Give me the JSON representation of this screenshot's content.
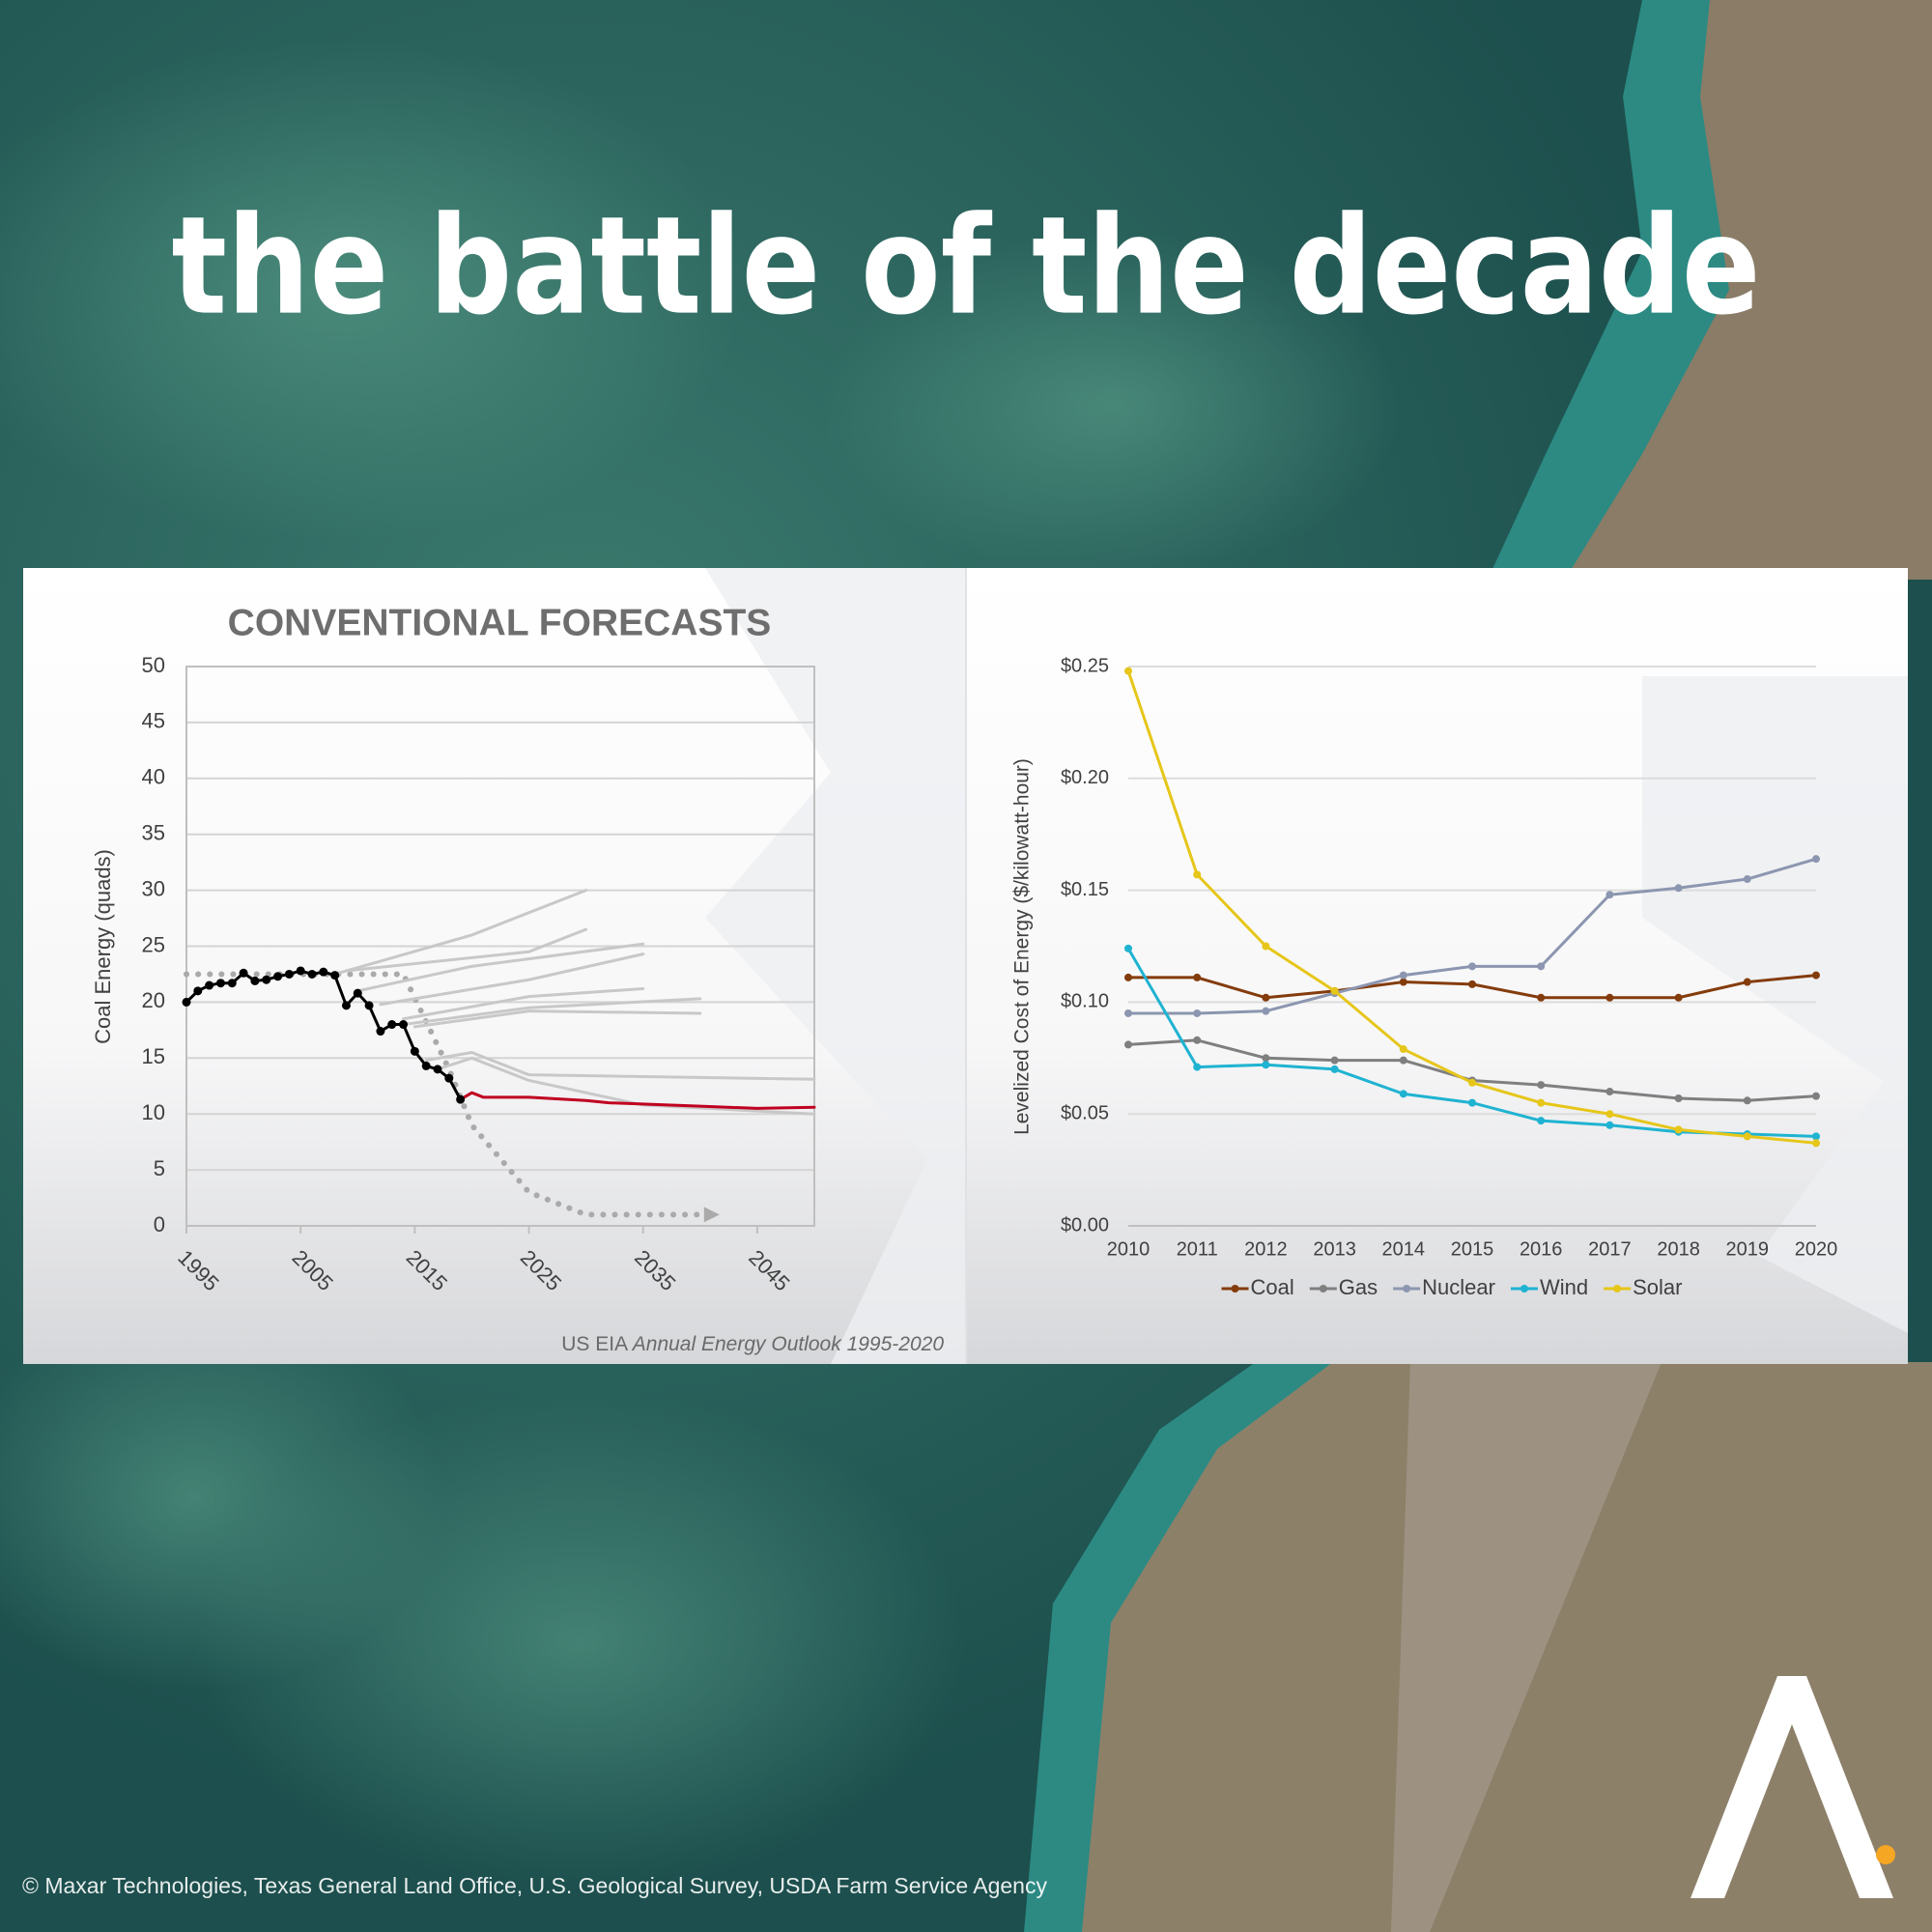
{
  "title": "the battle of the decade",
  "credit": "© Maxar Technologies, Texas General Land Office, U.S. Geological Survey, USDA Farm Service Agency",
  "chart_data": [
    {
      "type": "line",
      "title": "CONVENTIONAL FORECASTS",
      "y_label": "Coal Energy (quads)",
      "source": "US EIA",
      "source_title": "Annual Energy Outlook 1995-2020",
      "xlim": [
        1995,
        2050
      ],
      "xticks": [
        1995,
        2005,
        2015,
        2025,
        2035,
        2045
      ],
      "ylim": [
        0,
        50
      ],
      "yticks": [
        0,
        5,
        10,
        15,
        20,
        25,
        30,
        35,
        40,
        45,
        50
      ],
      "grid": true,
      "series": [
        {
          "color": "#aaaaaa",
          "dash": "dotted",
          "arrow": true,
          "x": [
            1995,
            2014,
            2018,
            2020,
            2025,
            2030,
            2040
          ],
          "values": [
            22.5,
            22.5,
            14,
            9,
            3,
            1,
            1
          ]
        },
        {
          "color": "#c8c8c8",
          "x": [
            2008,
            2020,
            2030
          ],
          "values": [
            22.5,
            26,
            30
          ]
        },
        {
          "color": "#c8c8c8",
          "x": [
            2009,
            2025,
            2030
          ],
          "values": [
            22.8,
            24.5,
            26.5
          ]
        },
        {
          "color": "#c8c8c8",
          "x": [
            2010,
            2020,
            2035
          ],
          "values": [
            21,
            23.2,
            25.2
          ]
        },
        {
          "color": "#c8c8c8",
          "x": [
            2012,
            2025,
            2035
          ],
          "values": [
            19.8,
            22,
            24.3
          ]
        },
        {
          "color": "#c8c8c8",
          "x": [
            2014,
            2025,
            2035
          ],
          "values": [
            18.5,
            20.5,
            21.2
          ]
        },
        {
          "color": "#c8c8c8",
          "x": [
            2014,
            2025,
            2040
          ],
          "values": [
            18,
            19.5,
            20.3
          ]
        },
        {
          "color": "#c8c8c8",
          "x": [
            2015,
            2025,
            2040
          ],
          "values": [
            17.8,
            19.2,
            19
          ]
        },
        {
          "color": "#c8c8c8",
          "x": [
            2016,
            2020,
            2025,
            2050
          ],
          "values": [
            14.8,
            15.5,
            13.5,
            13.1
          ]
        },
        {
          "color": "#c8c8c8",
          "x": [
            2017,
            2020,
            2025,
            2035,
            2050
          ],
          "values": [
            14,
            15,
            13,
            10.8,
            10
          ]
        },
        {
          "color": "#c00020",
          "x": [
            2019,
            2020,
            2021,
            2025,
            2030,
            2032,
            2040,
            2045,
            2050
          ],
          "values": [
            11.3,
            11.9,
            11.5,
            11.5,
            11.2,
            11,
            10.7,
            10.5,
            10.6
          ]
        },
        {
          "color": "#000000",
          "markers": true,
          "x": [
            1995,
            1996,
            1997,
            1998,
            1999,
            2000,
            2001,
            2002,
            2003,
            2004,
            2005,
            2006,
            2007,
            2008,
            2009,
            2010,
            2011,
            2012,
            2013,
            2014,
            2015,
            2016,
            2017,
            2018,
            2019
          ],
          "values": [
            20,
            21,
            21.5,
            21.7,
            21.7,
            22.6,
            21.9,
            22,
            22.3,
            22.5,
            22.8,
            22.5,
            22.7,
            22.4,
            19.7,
            20.8,
            19.7,
            17.4,
            18,
            18,
            15.6,
            14.3,
            14,
            13.2,
            11.3
          ]
        }
      ]
    },
    {
      "type": "line",
      "y_label": "Levelized Cost of Energy ($/kilowatt-hour)",
      "categories": [
        "2010",
        "2011",
        "2012",
        "2013",
        "2014",
        "2015",
        "2016",
        "2017",
        "2018",
        "2019",
        "2020"
      ],
      "ylim": [
        0,
        0.25
      ],
      "yticks": [
        {
          "value": 0,
          "label": "$0.00"
        },
        {
          "value": 0.05,
          "label": "$0.05"
        },
        {
          "value": 0.1,
          "label": "$0.10"
        },
        {
          "value": 0.15,
          "label": "$0.15"
        },
        {
          "value": 0.2,
          "label": "$0.20"
        },
        {
          "value": 0.25,
          "label": "$0.25"
        }
      ],
      "grid": true,
      "legend": "bottom",
      "series": [
        {
          "name": "Coal",
          "color": "#843c0c",
          "markers": true,
          "values": [
            0.111,
            0.111,
            0.102,
            0.105,
            0.109,
            0.108,
            0.102,
            0.102,
            0.102,
            0.109,
            0.112
          ]
        },
        {
          "name": "Gas",
          "color": "#7f7f7f",
          "markers": true,
          "values": [
            0.081,
            0.083,
            0.075,
            0.074,
            0.074,
            0.065,
            0.063,
            0.06,
            0.057,
            0.056,
            0.058
          ]
        },
        {
          "name": "Nuclear",
          "color": "#8c96b0",
          "markers": true,
          "values": [
            0.095,
            0.095,
            0.096,
            0.104,
            0.112,
            0.116,
            0.116,
            0.148,
            0.151,
            0.155,
            0.164
          ]
        },
        {
          "name": "Wind",
          "color": "#1fb3d1",
          "markers": true,
          "values": [
            0.124,
            0.071,
            0.072,
            0.07,
            0.059,
            0.055,
            0.047,
            0.045,
            0.042,
            0.041,
            0.04
          ]
        },
        {
          "name": "Solar",
          "color": "#e6c619",
          "markers": true,
          "values": [
            0.248,
            0.157,
            0.125,
            0.105,
            0.079,
            0.064,
            0.055,
            0.05,
            0.043,
            0.04,
            0.037
          ]
        }
      ]
    }
  ]
}
